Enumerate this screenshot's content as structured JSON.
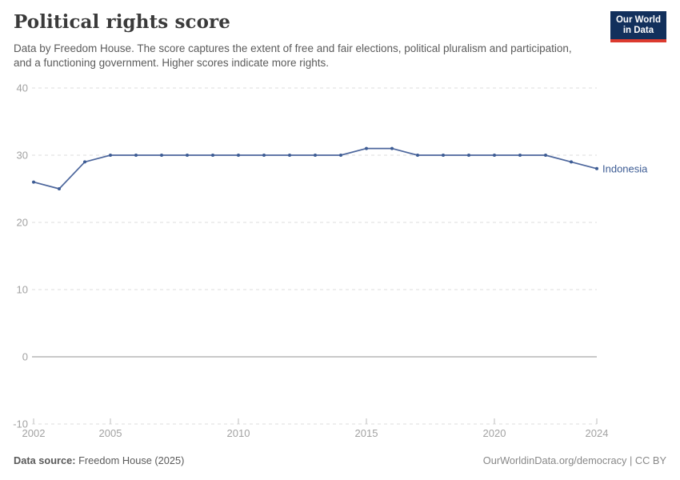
{
  "header": {
    "title": "Political rights score",
    "subtitle": "Data by Freedom House. The score captures the extent of free and fair elections, political pluralism and participation, and a functioning government. Higher scores indicate more rights.",
    "logo": {
      "line1": "Our World",
      "line2": "in Data",
      "bg_color": "#12305c",
      "accent_color": "#dc3a2f"
    }
  },
  "chart_data": {
    "type": "line",
    "title": "Political rights score",
    "x": [
      2002,
      2003,
      2004,
      2005,
      2006,
      2007,
      2008,
      2009,
      2010,
      2011,
      2012,
      2013,
      2014,
      2015,
      2016,
      2017,
      2018,
      2019,
      2020,
      2021,
      2022,
      2023,
      2024
    ],
    "series": [
      {
        "name": "Indonesia",
        "color": "#4c669c",
        "point_color": "#3d5c94",
        "values": [
          26,
          25,
          29,
          30,
          30,
          30,
          30,
          30,
          30,
          30,
          30,
          30,
          30,
          31,
          31,
          30,
          30,
          30,
          30,
          30,
          30,
          29,
          28
        ]
      }
    ],
    "xlabel": "",
    "ylabel": "",
    "xlim": [
      2002,
      2024
    ],
    "ylim": [
      -10,
      40
    ],
    "x_ticks": [
      2002,
      2005,
      2010,
      2015,
      2020,
      2024
    ],
    "y_ticks": [
      -10,
      0,
      10,
      20,
      30,
      40
    ],
    "grid": "horizontal-dashed",
    "zero_line": true,
    "legend_position": "end-of-line-label",
    "colors": {
      "gridline": "#dedede",
      "zero_line": "#a9a9a9",
      "tick_mark": "#bdbdbd",
      "axis_text": "#a2a2a2"
    }
  },
  "footer": {
    "source_label": "Data source:",
    "source_value": "Freedom House (2025)",
    "credit": "OurWorldinData.org/democracy | CC BY"
  }
}
